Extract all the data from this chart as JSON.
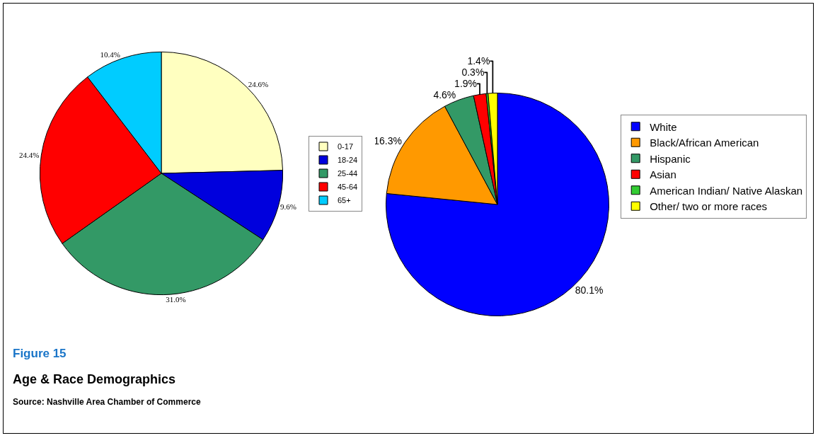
{
  "chart_data": [
    {
      "type": "pie",
      "categories": [
        "0-17",
        "18-24",
        "25-44",
        "45-64",
        "65+"
      ],
      "values": [
        24.6,
        9.6,
        31.0,
        24.4,
        10.4
      ],
      "value_labels": [
        "24.6%",
        "9.6%",
        "31.0%",
        "24.4%",
        "10.4%"
      ],
      "colors": [
        "#ffffc0",
        "#0000dd",
        "#339966",
        "#ff0000",
        "#00ccff"
      ],
      "legend": "right",
      "annotations": [
        "Figure 15",
        "Age & Race Demographics",
        "Source:  Nashville Area Chamber of Commerce"
      ]
    },
    {
      "type": "pie",
      "categories": [
        "White",
        "Black/African American",
        "Hispanic",
        "Asian",
        "American Indian/ Native Alaskan",
        "Other/ two or more races"
      ],
      "values": [
        80.1,
        16.3,
        4.6,
        1.9,
        0.3,
        1.4
      ],
      "value_labels": [
        "80.1%",
        "16.3%",
        "4.6%",
        "1.9%",
        "0.3%",
        "1.4%"
      ],
      "colors": [
        "#0000ff",
        "#ff9900",
        "#339966",
        "#ff0000",
        "#33cc33",
        "#ffff00"
      ],
      "legend": "right"
    }
  ]
}
